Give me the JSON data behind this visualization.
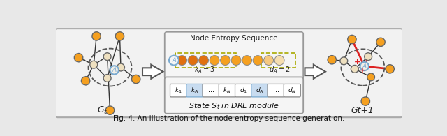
{
  "bg_color": "#E8E8E8",
  "panel_bg": "#F0F0F0",
  "orange": "#F5A020",
  "light_orange": "#F5C880",
  "very_light_orange": "#F0DDB0",
  "cream": "#EEE0C0",
  "white": "#FFFFFF",
  "blue_border": "#7AAAD0",
  "blue_fill": "#C8DCF0",
  "red": "#DD2222",
  "dark": "#333333",
  "gray": "#888888",
  "arrow_color": "#555555",
  "node_edge": "#666666",
  "caption": "Fig. 4. An illustration of the node entropy sequence generation.",
  "entropy_title": "Node Entropy Sequence",
  "kA_text": "$k_A = 3$",
  "dA_text": "$d_A = 2$",
  "state_text": "State $\\mathit{S}_t$ in DRL module",
  "Gt_text": "$G_t$",
  "Gt1_text": "Gt+1",
  "state_labels": [
    "$k_1$",
    "$k_A$",
    "$\\cdots$",
    "$k_N$",
    "$d_1$",
    "$d_A$",
    "$\\cdots$",
    "$d_N$"
  ],
  "highlighted_indices": [
    1,
    5
  ],
  "n_seq_circles": 10,
  "seq_colors": [
    "#E07010",
    "#E07010",
    "#E07010",
    "#F5A020",
    "#F5A020",
    "#F5A020",
    "#F5A020",
    "#F5A020",
    "#F5C880",
    "#F5DDB0"
  ]
}
